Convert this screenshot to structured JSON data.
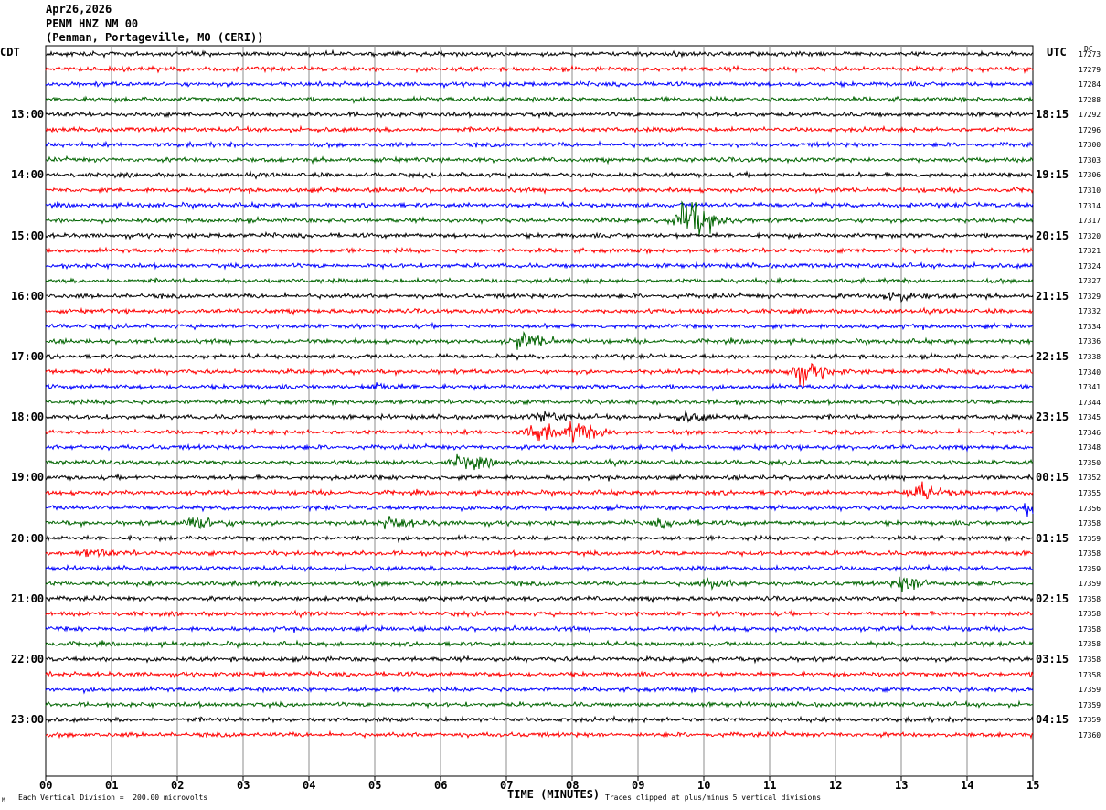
{
  "header": {
    "date": "Apr26,2026",
    "station": "PENM HNZ NM 00",
    "location": "(Penman, Portageville, MO (CERI))"
  },
  "left_tz": "CDT",
  "right_tz": "UTC",
  "dc_label": "DC",
  "footer": {
    "scale_note": "Each Vertical Division =  200.00 microvolts",
    "clip_note": "Traces clipped at plus/minus 5 vertical divisions",
    "corner_mark": "M"
  },
  "chart_data": {
    "type": "line",
    "title": "",
    "xlabel": "TIME (MINUTES)",
    "ylabel": "",
    "xlim": [
      0,
      15
    ],
    "x_ticks": [
      "00",
      "01",
      "02",
      "03",
      "04",
      "05",
      "06",
      "07",
      "08",
      "09",
      "10",
      "11",
      "12",
      "13",
      "14",
      "15"
    ],
    "left_time_labels": [
      "13:00",
      "14:00",
      "15:00",
      "16:00",
      "17:00",
      "18:00",
      "19:00",
      "20:00",
      "21:00",
      "22:00",
      "23:00"
    ],
    "right_time_labels": [
      "18:15",
      "19:15",
      "20:15",
      "21:15",
      "22:15",
      "23:15",
      "00:15",
      "01:15",
      "02:15",
      "03:15",
      "04:15"
    ],
    "trace_color_cycle": [
      "#000000",
      "#ff0000",
      "#0000ff",
      "#006400"
    ],
    "dc_offsets": [
      17273,
      17279,
      17284,
      17288,
      17292,
      17296,
      17300,
      17303,
      17306,
      17310,
      17314,
      17317,
      17320,
      17321,
      17324,
      17327,
      17329,
      17332,
      17334,
      17336,
      17338,
      17340,
      17341,
      17344,
      17345,
      17346,
      17348,
      17350,
      17352,
      17355,
      17356,
      17358,
      17359,
      17358,
      17359,
      17359,
      17358,
      17358,
      17358,
      17358,
      17358,
      17358,
      17359,
      17359,
      17359,
      17360
    ],
    "series": [
      {
        "values_summary": "trace rows start at 12:15 CDT, 15 minutes per row, 46 rows"
      }
    ],
    "events": [
      {
        "row": 11,
        "minute": 9.7,
        "amplitude": 4.5
      },
      {
        "row": 16,
        "minute": 12.8,
        "amplitude": 1.2
      },
      {
        "row": 19,
        "minute": 7.2,
        "amplitude": 1.5
      },
      {
        "row": 21,
        "minute": 11.4,
        "amplitude": 2.2
      },
      {
        "row": 22,
        "minute": 5.0,
        "amplitude": 0.6
      },
      {
        "row": 24,
        "minute": 7.5,
        "amplitude": 0.9
      },
      {
        "row": 24,
        "minute": 9.65,
        "amplitude": 0.8
      },
      {
        "row": 25,
        "minute": 7.4,
        "amplitude": 1.6
      },
      {
        "row": 25,
        "minute": 8.0,
        "amplitude": 1.7
      },
      {
        "row": 27,
        "minute": 6.3,
        "amplitude": 1.4
      },
      {
        "row": 29,
        "minute": 13.2,
        "amplitude": 1.6
      },
      {
        "row": 30,
        "minute": 14.9,
        "amplitude": 1.1
      },
      {
        "row": 31,
        "minute": 2.2,
        "amplitude": 1.3
      },
      {
        "row": 31,
        "minute": 5.2,
        "amplitude": 1.0
      },
      {
        "row": 31,
        "minute": 9.3,
        "amplitude": 0.6
      },
      {
        "row": 33,
        "minute": 0.6,
        "amplitude": 0.7
      },
      {
        "row": 35,
        "minute": 10.0,
        "amplitude": 0.8
      },
      {
        "row": 35,
        "minute": 13.0,
        "amplitude": 1.5
      }
    ]
  }
}
